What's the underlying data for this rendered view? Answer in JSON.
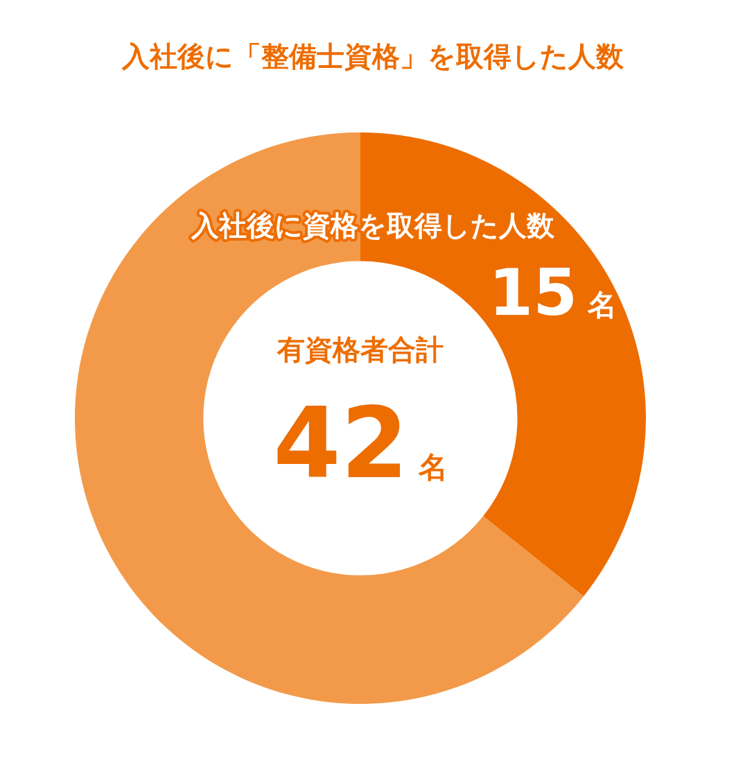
{
  "chart_data": {
    "type": "donut",
    "title": "入社後に「整備士資格」を取得した人数",
    "categories": [
      "入社後に資格を取得した人数",
      null
    ],
    "values": [
      15,
      27
    ],
    "colors": [
      "#ed6d00",
      "#f39a4a"
    ],
    "value_labels": [
      "15名",
      null
    ],
    "annotations": [
      "有資格者合計",
      "42名"
    ]
  }
}
